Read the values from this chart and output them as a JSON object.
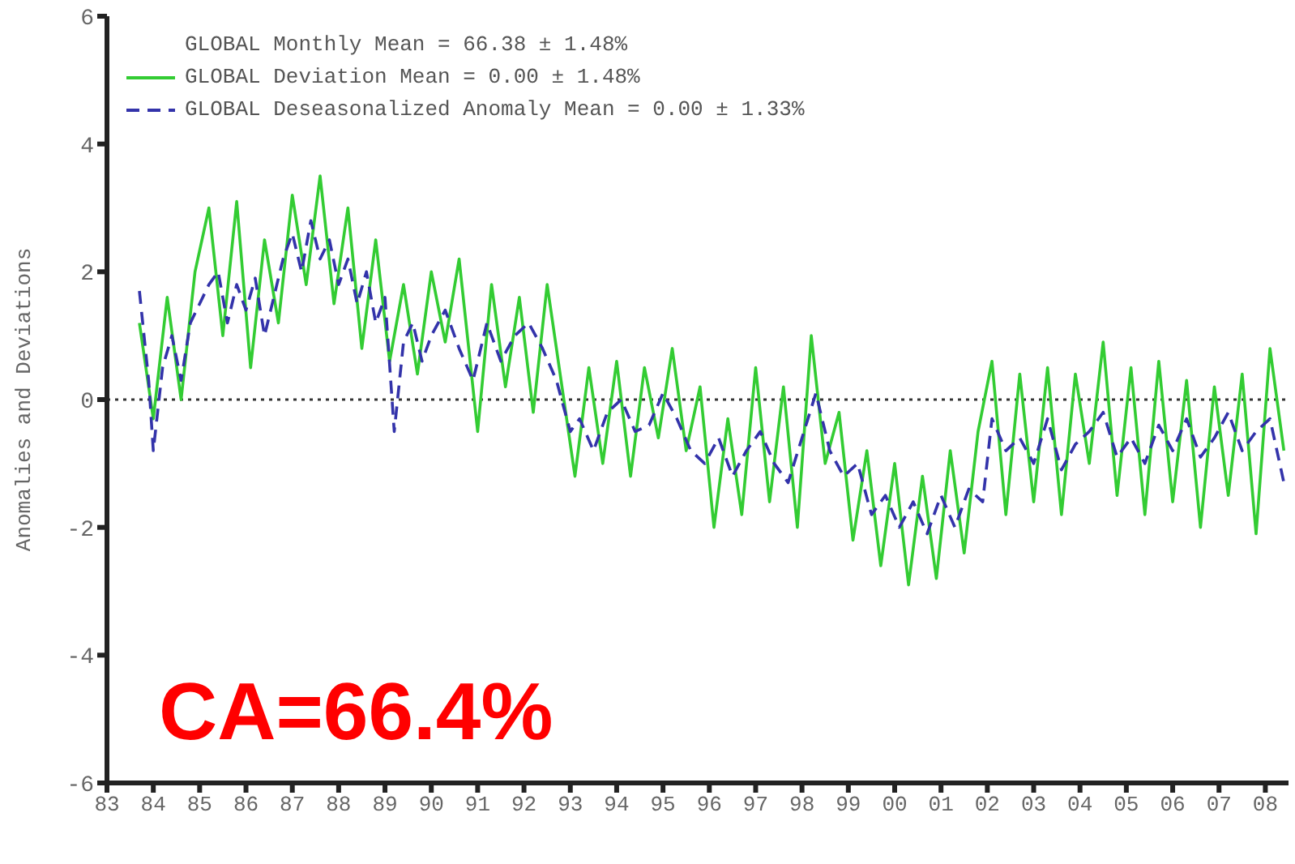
{
  "chart_data": {
    "type": "line",
    "ylabel": "Anomalies and Deviations",
    "annotations": [
      "GLOBAL Monthly Mean = 66.38 ± 1.48%",
      "CA=66.4%"
    ],
    "xlim": [
      1983,
      2008.5
    ],
    "xticks": [
      {
        "value": 1983,
        "label": "83"
      },
      {
        "value": 1984,
        "label": "84"
      },
      {
        "value": 1985,
        "label": "85"
      },
      {
        "value": 1986,
        "label": "86"
      },
      {
        "value": 1987,
        "label": "87"
      },
      {
        "value": 1988,
        "label": "88"
      },
      {
        "value": 1989,
        "label": "89"
      },
      {
        "value": 1990,
        "label": "90"
      },
      {
        "value": 1991,
        "label": "91"
      },
      {
        "value": 1992,
        "label": "92"
      },
      {
        "value": 1993,
        "label": "93"
      },
      {
        "value": 1994,
        "label": "94"
      },
      {
        "value": 1995,
        "label": "95"
      },
      {
        "value": 1996,
        "label": "96"
      },
      {
        "value": 1997,
        "label": "97"
      },
      {
        "value": 1998,
        "label": "98"
      },
      {
        "value": 1999,
        "label": "99"
      },
      {
        "value": 2000,
        "label": "00"
      },
      {
        "value": 2001,
        "label": "01"
      },
      {
        "value": 2002,
        "label": "02"
      },
      {
        "value": 2003,
        "label": "03"
      },
      {
        "value": 2004,
        "label": "04"
      },
      {
        "value": 2005,
        "label": "05"
      },
      {
        "value": 2006,
        "label": "06"
      },
      {
        "value": 2007,
        "label": "07"
      },
      {
        "value": 2008,
        "label": "08"
      }
    ],
    "ylim": [
      -6,
      6
    ],
    "yticks": [
      -6,
      -4,
      -2,
      0,
      2,
      4,
      6
    ],
    "ref_lines": [
      {
        "axis": "y",
        "value": 0,
        "color": "#333333",
        "line_style": "dotted"
      }
    ],
    "grid": false,
    "legend": "top left",
    "marker": "none",
    "series": [
      {
        "name": "GLOBAL Deviation Mean = 0.00 ± 1.48%",
        "color": "#33cc33",
        "line_style": "solid",
        "x": [
          1983.7,
          1984.0,
          1984.3,
          1984.6,
          1984.9,
          1985.2,
          1985.5,
          1985.8,
          1986.1,
          1986.4,
          1986.7,
          1987.0,
          1987.3,
          1987.6,
          1987.9,
          1988.2,
          1988.5,
          1988.8,
          1989.1,
          1989.4,
          1989.7,
          1990.0,
          1990.3,
          1990.6,
          1991.0,
          1991.3,
          1991.6,
          1991.9,
          1992.2,
          1992.5,
          1992.8,
          1993.1,
          1993.4,
          1993.7,
          1994.0,
          1994.3,
          1994.6,
          1994.9,
          1995.2,
          1995.5,
          1995.8,
          1996.1,
          1996.4,
          1996.7,
          1997.0,
          1997.3,
          1997.6,
          1997.9,
          1998.2,
          1998.5,
          1998.8,
          1999.1,
          1999.4,
          1999.7,
          2000.0,
          2000.3,
          2000.6,
          2000.9,
          2001.2,
          2001.5,
          2001.8,
          2002.1,
          2002.4,
          2002.7,
          2003.0,
          2003.3,
          2003.6,
          2003.9,
          2004.2,
          2004.5,
          2004.8,
          2005.1,
          2005.4,
          2005.7,
          2006.0,
          2006.3,
          2006.6,
          2006.9,
          2007.2,
          2007.5,
          2007.8,
          2008.1,
          2008.4
        ],
        "values": [
          1.2,
          -0.3,
          1.6,
          0,
          2.0,
          3.0,
          1.0,
          3.1,
          0.5,
          2.5,
          1.2,
          3.2,
          1.8,
          3.5,
          1.5,
          3.0,
          0.8,
          2.5,
          0.6,
          1.8,
          0.4,
          2.0,
          0.9,
          2.2,
          -0.5,
          1.8,
          0.2,
          1.6,
          -0.2,
          1.8,
          0.3,
          -1.2,
          0.5,
          -1.0,
          0.6,
          -1.2,
          0.5,
          -0.6,
          0.8,
          -0.8,
          0.2,
          -2.0,
          -0.3,
          -1.8,
          0.5,
          -1.6,
          0.2,
          -2.0,
          1.0,
          -1.0,
          -0.2,
          -2.2,
          -0.8,
          -2.6,
          -1.0,
          -2.9,
          -1.2,
          -2.8,
          -0.8,
          -2.4,
          -0.5,
          0.6,
          -1.8,
          0.4,
          -1.6,
          0.5,
          -1.8,
          0.4,
          -1.0,
          0.9,
          -1.5,
          0.5,
          -1.8,
          0.6,
          -1.6,
          0.3,
          -2.0,
          0.2,
          -1.5,
          0.4,
          -2.1,
          0.8,
          -0.8
        ]
      },
      {
        "name": "GLOBAL Deseasonalized Anomaly Mean = 0.00 ± 1.33%",
        "color": "#3333aa",
        "line_style": "dashed",
        "x": [
          1983.7,
          1983.9,
          1984.0,
          1984.2,
          1984.4,
          1984.6,
          1984.8,
          1985.0,
          1985.2,
          1985.4,
          1985.6,
          1985.8,
          1986.0,
          1986.2,
          1986.4,
          1986.6,
          1986.8,
          1987.0,
          1987.2,
          1987.4,
          1987.6,
          1987.8,
          1988.0,
          1988.2,
          1988.4,
          1988.6,
          1988.8,
          1989.0,
          1989.2,
          1989.4,
          1989.6,
          1989.8,
          1990.0,
          1990.3,
          1990.6,
          1990.9,
          1991.2,
          1991.5,
          1991.8,
          1992.1,
          1992.4,
          1992.7,
          1993.0,
          1993.2,
          1993.5,
          1993.8,
          1994.1,
          1994.4,
          1994.7,
          1995.0,
          1995.3,
          1995.6,
          1995.9,
          1996.2,
          1996.5,
          1996.8,
          1997.1,
          1997.4,
          1997.7,
          1998.0,
          1998.3,
          1998.6,
          1998.9,
          1999.2,
          1999.5,
          1999.8,
          2000.1,
          2000.4,
          2000.7,
          2001.0,
          2001.3,
          2001.6,
          2001.9,
          2002.1,
          2002.4,
          2002.7,
          2003.0,
          2003.3,
          2003.6,
          2003.9,
          2004.2,
          2004.5,
          2004.8,
          2005.1,
          2005.4,
          2005.7,
          2006.0,
          2006.3,
          2006.6,
          2006.9,
          2007.2,
          2007.5,
          2007.8,
          2008.1,
          2008.4
        ],
        "values": [
          1.7,
          0.3,
          -0.8,
          0.5,
          1.0,
          0.3,
          1.2,
          1.5,
          1.8,
          2.0,
          1.2,
          1.8,
          1.4,
          1.9,
          1.0,
          1.6,
          2.2,
          2.6,
          2.0,
          2.8,
          2.2,
          2.5,
          1.8,
          2.2,
          1.5,
          2.0,
          1.2,
          1.6,
          -0.5,
          0.9,
          1.2,
          0.6,
          1.0,
          1.4,
          0.8,
          0.3,
          1.2,
          0.6,
          1.0,
          1.2,
          0.8,
          0.3,
          -0.5,
          -0.3,
          -0.8,
          -0.2,
          0,
          -0.5,
          -0.4,
          0.1,
          -0.3,
          -0.8,
          -1.0,
          -0.6,
          -1.2,
          -0.8,
          -0.5,
          -1.0,
          -1.3,
          -0.6,
          0.1,
          -0.8,
          -1.2,
          -1.0,
          -1.8,
          -1.5,
          -2.0,
          -1.6,
          -2.1,
          -1.5,
          -2.0,
          -1.4,
          -1.6,
          -0.3,
          -0.8,
          -0.6,
          -1.0,
          -0.3,
          -1.1,
          -0.7,
          -0.5,
          -0.2,
          -0.9,
          -0.6,
          -1.0,
          -0.4,
          -0.8,
          -0.3,
          -0.9,
          -0.6,
          -0.2,
          -0.8,
          -0.5,
          -0.3,
          -1.3
        ]
      }
    ]
  }
}
